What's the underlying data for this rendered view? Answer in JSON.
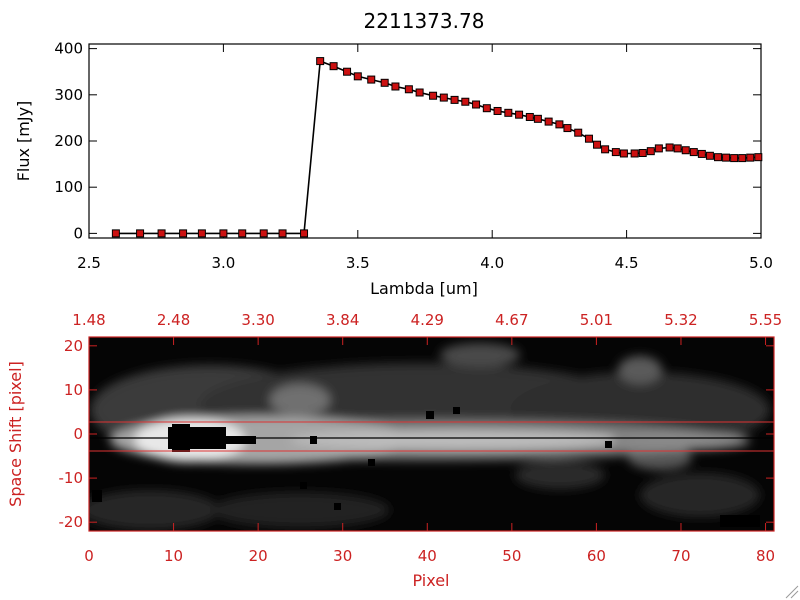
{
  "chart_data": [
    {
      "type": "line",
      "title": "2211373.78",
      "xlabel": "Lambda [um]",
      "ylabel": "Flux [mJy]",
      "xlim": [
        2.5,
        5.0
      ],
      "ylim": [
        -10,
        410
      ],
      "xticks": [
        "2.5",
        "3.0",
        "3.5",
        "4.0",
        "4.5",
        "5.0"
      ],
      "yticks": [
        "0",
        "100",
        "200",
        "300",
        "400"
      ],
      "grid": false,
      "colors": {
        "line": "#000000",
        "marker_fill": "#cc1111",
        "marker_edge": "#000000"
      },
      "series": [
        {
          "x": [
            2.6,
            2.69,
            2.77,
            2.85,
            2.92,
            3.0,
            3.07,
            3.15,
            3.22,
            3.3,
            3.36,
            3.41,
            3.46,
            3.5,
            3.55,
            3.6,
            3.64,
            3.69,
            3.73,
            3.78,
            3.82,
            3.86,
            3.9,
            3.94,
            3.98,
            4.02,
            4.06,
            4.1,
            4.14,
            4.17,
            4.21,
            4.25,
            4.28,
            4.32,
            4.36,
            4.39,
            4.42,
            4.46,
            4.49,
            4.53,
            4.56,
            4.59,
            4.62,
            4.66,
            4.69,
            4.72,
            4.75,
            4.78,
            4.81,
            4.84,
            4.87,
            4.9,
            4.93,
            4.96,
            4.99
          ],
          "y": [
            0,
            0,
            0,
            0,
            0,
            0,
            0,
            0,
            0,
            0,
            373,
            362,
            350,
            340,
            333,
            326,
            318,
            312,
            305,
            298,
            294,
            289,
            285,
            279,
            271,
            265,
            261,
            257,
            252,
            248,
            242,
            236,
            228,
            218,
            205,
            192,
            182,
            176,
            173,
            173,
            174,
            178,
            184,
            186,
            184,
            180,
            176,
            172,
            168,
            165,
            164,
            163,
            163,
            164,
            165
          ]
        }
      ]
    },
    {
      "type": "heatmap",
      "xlabel": "Pixel",
      "ylabel": "Space Shift [pixel]",
      "xlim": [
        0,
        81
      ],
      "ylim": [
        -22,
        22
      ],
      "xticks": [
        "0",
        "10",
        "20",
        "30",
        "40",
        "50",
        "60",
        "70",
        "80"
      ],
      "yticks": [
        "-20",
        "-10",
        "0",
        "10",
        "20"
      ],
      "top_axis_ticks": [
        "1.48",
        "2.48",
        "3.30",
        "3.84",
        "4.29",
        "4.67",
        "5.01",
        "5.32",
        "5.55"
      ],
      "extraction_aperture": [
        -3,
        3
      ],
      "colormap": "grayscale",
      "colors": {
        "axes": "#cc2222",
        "aperture_lines": "#dd3333",
        "trace_line": "#000000"
      }
    }
  ]
}
